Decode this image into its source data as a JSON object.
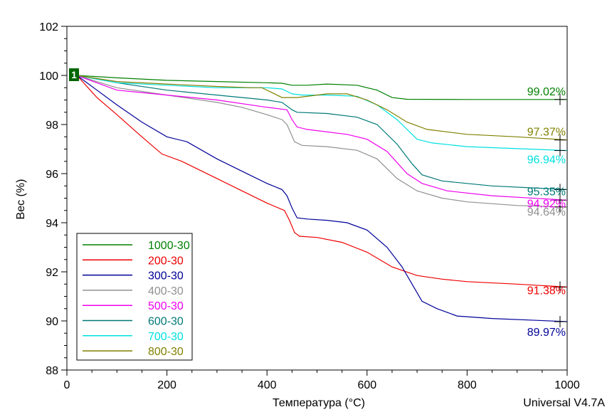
{
  "chart_data": {
    "type": "line",
    "xlabel": "Температура (°C)",
    "ylabel": "Вес (%)",
    "xlim": [
      0,
      1000
    ],
    "ylim": [
      88,
      102
    ],
    "xticks": [
      0,
      200,
      400,
      600,
      800,
      1000
    ],
    "yticks": [
      88,
      90,
      92,
      94,
      96,
      98,
      100,
      102
    ],
    "legend_position": "bottom-left",
    "marker_label": "1",
    "footer": "Universal V4.7A",
    "series": [
      {
        "name": "1000-30",
        "color": "#008000",
        "end_label": "99.02%",
        "points": [
          [
            20,
            100
          ],
          [
            100,
            99.9
          ],
          [
            200,
            99.8
          ],
          [
            300,
            99.75
          ],
          [
            400,
            99.7
          ],
          [
            430,
            99.68
          ],
          [
            450,
            99.6
          ],
          [
            480,
            99.6
          ],
          [
            520,
            99.65
          ],
          [
            580,
            99.6
          ],
          [
            620,
            99.4
          ],
          [
            650,
            99.1
          ],
          [
            680,
            99.03
          ],
          [
            800,
            99.02
          ],
          [
            1000,
            99.02
          ]
        ]
      },
      {
        "name": "200-30",
        "color": "#ee0000",
        "end_label": "91.38%",
        "points": [
          [
            20,
            100
          ],
          [
            60,
            99.1
          ],
          [
            100,
            98.4
          ],
          [
            150,
            97.5
          ],
          [
            190,
            96.8
          ],
          [
            230,
            96.5
          ],
          [
            300,
            95.8
          ],
          [
            350,
            95.3
          ],
          [
            400,
            94.8
          ],
          [
            435,
            94.5
          ],
          [
            445,
            94.1
          ],
          [
            455,
            93.6
          ],
          [
            465,
            93.45
          ],
          [
            500,
            93.4
          ],
          [
            550,
            93.2
          ],
          [
            600,
            92.8
          ],
          [
            650,
            92.2
          ],
          [
            700,
            91.85
          ],
          [
            750,
            91.7
          ],
          [
            800,
            91.6
          ],
          [
            900,
            91.5
          ],
          [
            1000,
            91.38
          ]
        ]
      },
      {
        "name": "300-30",
        "color": "#000099",
        "end_label": "89.97%",
        "points": [
          [
            20,
            100
          ],
          [
            60,
            99.4
          ],
          [
            100,
            98.8
          ],
          [
            150,
            98.1
          ],
          [
            200,
            97.5
          ],
          [
            240,
            97.3
          ],
          [
            300,
            96.6
          ],
          [
            350,
            96.1
          ],
          [
            400,
            95.6
          ],
          [
            430,
            95.35
          ],
          [
            440,
            95.1
          ],
          [
            450,
            94.6
          ],
          [
            460,
            94.2
          ],
          [
            480,
            94.15
          ],
          [
            520,
            94.1
          ],
          [
            560,
            94.0
          ],
          [
            600,
            93.7
          ],
          [
            640,
            93.0
          ],
          [
            670,
            92.2
          ],
          [
            690,
            91.5
          ],
          [
            710,
            90.8
          ],
          [
            740,
            90.5
          ],
          [
            780,
            90.2
          ],
          [
            850,
            90.1
          ],
          [
            1000,
            89.97
          ]
        ]
      },
      {
        "name": "400-30",
        "color": "#909090",
        "end_label": "94.64%",
        "points": [
          [
            20,
            100
          ],
          [
            100,
            99.5
          ],
          [
            200,
            99.2
          ],
          [
            300,
            98.9
          ],
          [
            350,
            98.7
          ],
          [
            400,
            98.4
          ],
          [
            430,
            98.2
          ],
          [
            440,
            98.0
          ],
          [
            455,
            97.3
          ],
          [
            470,
            97.15
          ],
          [
            520,
            97.1
          ],
          [
            580,
            96.95
          ],
          [
            620,
            96.6
          ],
          [
            660,
            95.8
          ],
          [
            700,
            95.3
          ],
          [
            750,
            95.0
          ],
          [
            800,
            94.85
          ],
          [
            900,
            94.7
          ],
          [
            1000,
            94.64
          ]
        ]
      },
      {
        "name": "500-30",
        "color": "#ee00ee",
        "end_label": "94.92%",
        "points": [
          [
            20,
            100
          ],
          [
            100,
            99.4
          ],
          [
            200,
            99.2
          ],
          [
            300,
            99.0
          ],
          [
            400,
            98.7
          ],
          [
            440,
            98.6
          ],
          [
            450,
            98.2
          ],
          [
            460,
            97.9
          ],
          [
            480,
            97.8
          ],
          [
            560,
            97.6
          ],
          [
            600,
            97.4
          ],
          [
            640,
            96.9
          ],
          [
            680,
            96.0
          ],
          [
            710,
            95.6
          ],
          [
            760,
            95.3
          ],
          [
            850,
            95.1
          ],
          [
            1000,
            94.92
          ]
        ]
      },
      {
        "name": "600-30",
        "color": "#007878",
        "end_label": "95.35%",
        "points": [
          [
            20,
            100
          ],
          [
            100,
            99.7
          ],
          [
            200,
            99.4
          ],
          [
            300,
            99.2
          ],
          [
            400,
            99.0
          ],
          [
            430,
            98.9
          ],
          [
            450,
            98.6
          ],
          [
            460,
            98.5
          ],
          [
            520,
            98.45
          ],
          [
            580,
            98.3
          ],
          [
            620,
            98.0
          ],
          [
            660,
            97.2
          ],
          [
            690,
            96.4
          ],
          [
            710,
            95.95
          ],
          [
            750,
            95.7
          ],
          [
            850,
            95.5
          ],
          [
            1000,
            95.35
          ]
        ]
      },
      {
        "name": "700-30",
        "color": "#00e0e0",
        "end_label": "96.94%",
        "points": [
          [
            20,
            100
          ],
          [
            100,
            99.7
          ],
          [
            200,
            99.6
          ],
          [
            300,
            99.5
          ],
          [
            400,
            99.5
          ],
          [
            430,
            99.45
          ],
          [
            450,
            99.25
          ],
          [
            470,
            99.2
          ],
          [
            520,
            99.2
          ],
          [
            580,
            99.15
          ],
          [
            620,
            98.8
          ],
          [
            660,
            98.2
          ],
          [
            700,
            97.4
          ],
          [
            730,
            97.25
          ],
          [
            800,
            97.1
          ],
          [
            1000,
            96.94
          ]
        ]
      },
      {
        "name": "800-30",
        "color": "#808000",
        "end_label": "97.37%",
        "points": [
          [
            20,
            100
          ],
          [
            100,
            99.75
          ],
          [
            200,
            99.65
          ],
          [
            300,
            99.55
          ],
          [
            370,
            99.5
          ],
          [
            390,
            99.5
          ],
          [
            410,
            99.3
          ],
          [
            430,
            99.1
          ],
          [
            460,
            99.1
          ],
          [
            520,
            99.25
          ],
          [
            560,
            99.25
          ],
          [
            600,
            99.0
          ],
          [
            640,
            98.6
          ],
          [
            680,
            98.1
          ],
          [
            720,
            97.8
          ],
          [
            800,
            97.6
          ],
          [
            900,
            97.5
          ],
          [
            1000,
            97.37
          ]
        ]
      }
    ]
  }
}
